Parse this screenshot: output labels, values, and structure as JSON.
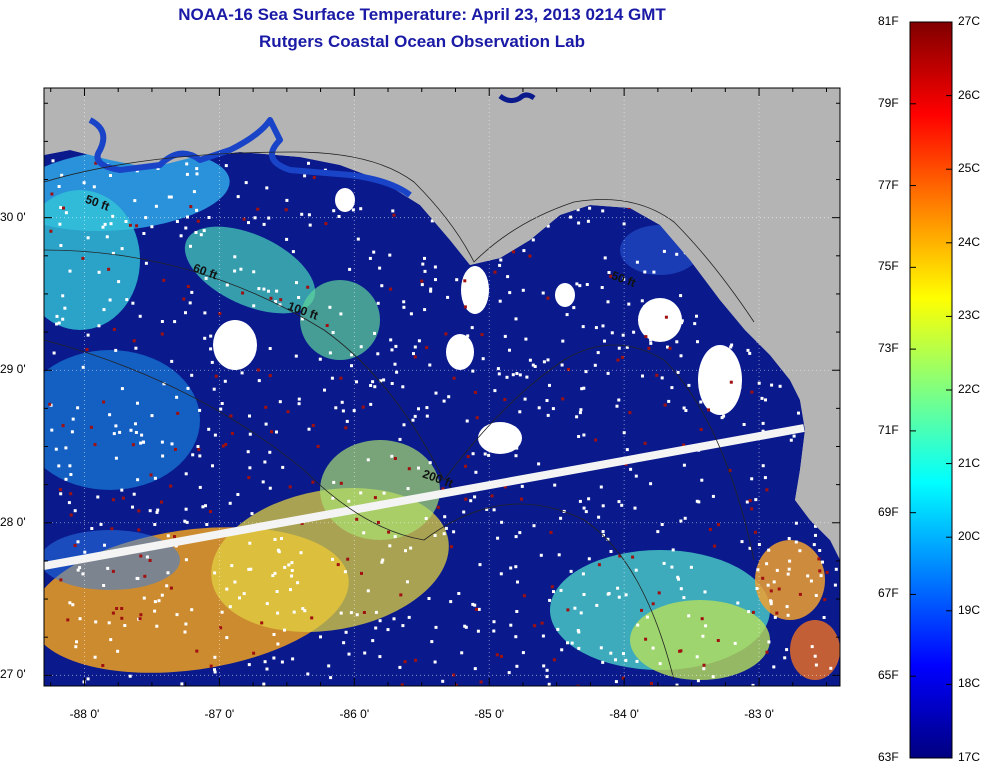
{
  "header": {
    "title": "NOAA-16 Sea Surface Temperature:  April 23, 2013 0214 GMT",
    "subtitle": "Rutgers Coastal Ocean Observation Lab"
  },
  "map": {
    "background_land_color": "#b4b4b4",
    "cloud_color": "#ffffff",
    "deep_water_color": "#0a1a8c",
    "latitude_ticks": [
      {
        "value": 30,
        "label": "30 0'"
      },
      {
        "value": 29,
        "label": "29 0'"
      },
      {
        "value": 28,
        "label": "28 0'"
      },
      {
        "value": 27,
        "label": "27 0'"
      }
    ],
    "longitude_ticks": [
      {
        "value": -88,
        "label": "-88 0'"
      },
      {
        "value": -87,
        "label": "-87 0'"
      },
      {
        "value": -86,
        "label": "-86 0'"
      },
      {
        "value": -85,
        "label": "-85 0'"
      },
      {
        "value": -84,
        "label": "-84 0'"
      },
      {
        "value": -83,
        "label": "-83 0'"
      }
    ],
    "lat_range": [
      26.93,
      30.85
    ],
    "lon_range": [
      -88.3,
      -82.4
    ],
    "contour_labels": [
      {
        "text": "50 ft",
        "lon": -88.0,
        "lat": 30.1
      },
      {
        "text": "60 ft",
        "lon": -87.2,
        "lat": 29.65
      },
      {
        "text": "100 ft",
        "lon": -86.5,
        "lat": 29.4
      },
      {
        "text": "50 ft",
        "lon": -84.1,
        "lat": 29.6
      },
      {
        "text": "200 ft",
        "lon": -85.5,
        "lat": 28.3
      }
    ]
  },
  "colorbar": {
    "colors": [
      "#000080",
      "#0000ff",
      "#0080ff",
      "#00ffff",
      "#80ff80",
      "#ffff00",
      "#ff8000",
      "#ff0000",
      "#800000"
    ],
    "fahrenheit": [
      "81F",
      "79F",
      "77F",
      "75F",
      "73F",
      "71F",
      "69F",
      "67F",
      "65F",
      "63F"
    ],
    "celsius": [
      "27C",
      "26C",
      "25C",
      "24C",
      "23C",
      "22C",
      "21C",
      "20C",
      "19C",
      "18C",
      "17C"
    ],
    "f_range": [
      63,
      81
    ],
    "c_range": [
      17,
      27
    ]
  }
}
